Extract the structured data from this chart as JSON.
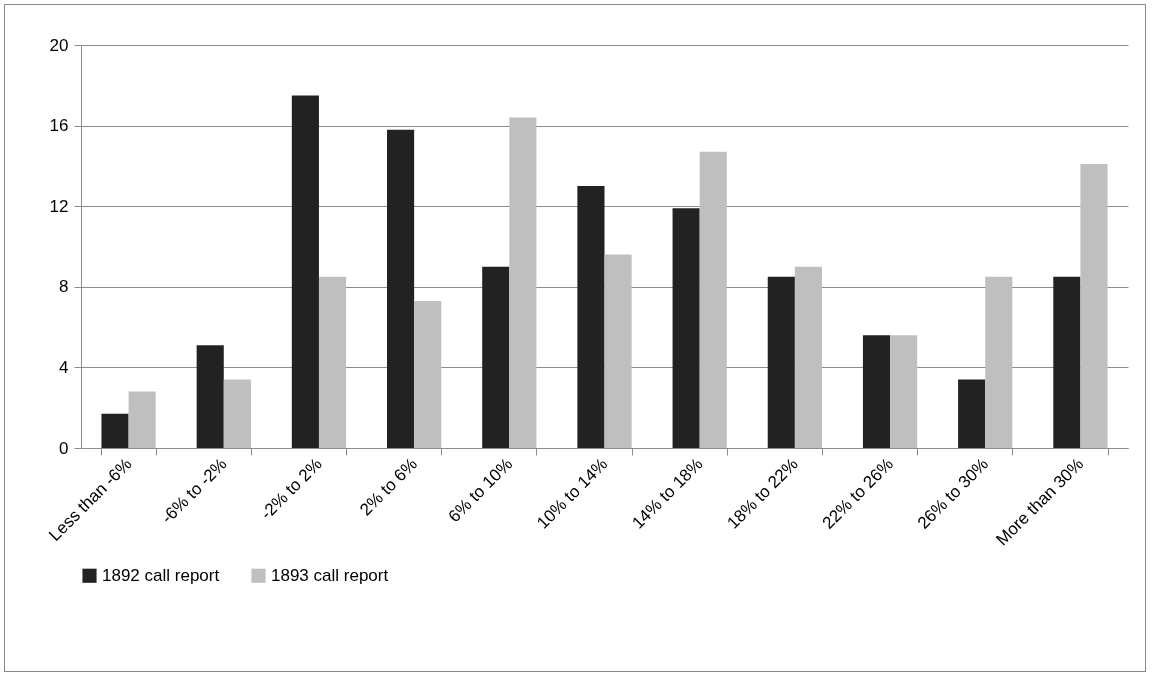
{
  "chart_data": {
    "type": "bar",
    "categories": [
      "Less than -6%",
      "-6% to -2%",
      "-2% to 2%",
      "2% to 6%",
      "6% to 10%",
      "10% to 14%",
      "14% to 18%",
      "18% to 22%",
      "22% to 26%",
      "26% to 30%",
      "More than 30%"
    ],
    "series": [
      {
        "name": "1892 call report",
        "color": "#222222",
        "values": [
          1.7,
          5.1,
          17.5,
          15.8,
          9.0,
          13.0,
          11.9,
          8.5,
          5.6,
          3.4,
          8.5
        ]
      },
      {
        "name": "1893 call report",
        "color": "#bfbfbf",
        "values": [
          2.8,
          3.4,
          8.5,
          7.3,
          16.4,
          9.6,
          14.7,
          9.0,
          5.6,
          8.5,
          14.1
        ]
      }
    ],
    "ylim": [
      0,
      20
    ],
    "yticks": [
      0,
      4,
      8,
      12,
      16,
      20
    ],
    "grid": "y",
    "legend": "bottom"
  }
}
